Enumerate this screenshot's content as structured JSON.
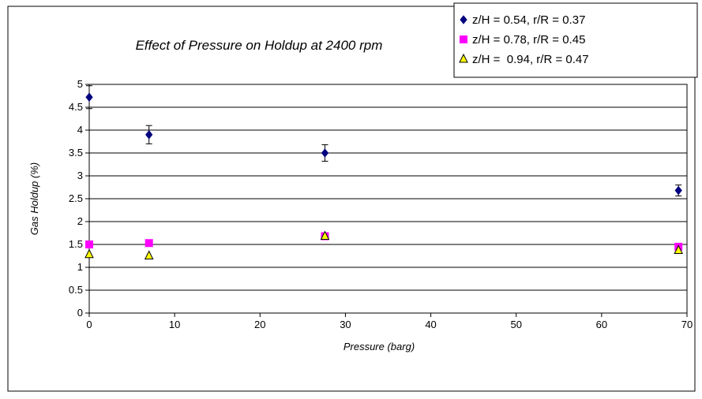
{
  "chart_data": {
    "type": "scatter",
    "title": "Effect of Pressure on Holdup at 2400 rpm",
    "xlabel": "Pressure (barg)",
    "ylabel": "Gas Holdup (%)",
    "xlim": [
      0,
      70
    ],
    "ylim": [
      0,
      5
    ],
    "xticks": [
      "0",
      "10",
      "20",
      "30",
      "40",
      "50",
      "60",
      "70"
    ],
    "yticks": [
      "0",
      "0.5",
      "1",
      "1.5",
      "2",
      "2.5",
      "3",
      "3.5",
      "4",
      "4.5",
      "5"
    ],
    "grid": "horizontal",
    "legend_position": "top-right",
    "series": [
      {
        "name": "z/H = 0.54, r/R = 0.37",
        "marker": "diamond",
        "color": "#000080",
        "x": [
          0,
          7,
          27.6,
          69
        ],
        "y": [
          4.72,
          3.9,
          3.5,
          2.68
        ],
        "err": [
          0.25,
          0.2,
          0.18,
          0.12
        ]
      },
      {
        "name": "z/H = 0.78, r/R = 0.45",
        "marker": "square",
        "color": "#ff00ff",
        "x": [
          0,
          7,
          27.6,
          69
        ],
        "y": [
          1.5,
          1.53,
          1.68,
          1.45
        ],
        "err": []
      },
      {
        "name": "z/H =  0.94, r/R = 0.47",
        "marker": "triangle",
        "color": "#ffff00",
        "x": [
          0,
          7,
          27.6,
          69
        ],
        "y": [
          1.28,
          1.25,
          1.68,
          1.37
        ],
        "err": []
      }
    ]
  }
}
